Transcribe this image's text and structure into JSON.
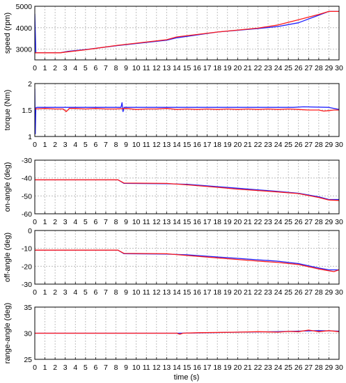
{
  "figure": {
    "xlabel": "time (s)"
  },
  "chart_data": [
    {
      "type": "line",
      "ylabel": "speed (rpm)",
      "xlim": [
        0,
        30
      ],
      "ylim": [
        2500,
        5000
      ],
      "xticks": [
        0,
        1,
        2,
        3,
        4,
        5,
        6,
        7,
        8,
        9,
        10,
        11,
        12,
        13,
        14,
        15,
        16,
        17,
        18,
        19,
        20,
        21,
        22,
        23,
        24,
        25,
        26,
        27,
        28,
        29,
        30
      ],
      "yticks": [
        3000,
        4000,
        5000
      ],
      "grid": true,
      "series": [
        {
          "color": "#1f1fff",
          "x": [
            0,
            0.1,
            2.5,
            3.3,
            5,
            8,
            13,
            14,
            18,
            22,
            24,
            26,
            29,
            29.3,
            30
          ],
          "y": [
            4650,
            2830,
            2830,
            2900,
            2980,
            3160,
            3420,
            3530,
            3800,
            3960,
            4060,
            4230,
            4760,
            4760,
            4760
          ]
        },
        {
          "color": "#ff1a1a",
          "x": [
            0,
            0.1,
            2.5,
            3.3,
            5,
            8,
            13,
            14,
            18,
            22,
            24,
            26,
            28,
            29,
            30
          ],
          "y": [
            2830,
            2830,
            2830,
            2880,
            2970,
            3170,
            3440,
            3570,
            3800,
            3980,
            4130,
            4370,
            4620,
            4760,
            4760
          ]
        }
      ]
    },
    {
      "type": "line",
      "ylabel": "torque (Nm)",
      "xlim": [
        0,
        30
      ],
      "ylim": [
        1,
        2
      ],
      "xticks": [
        0,
        1,
        2,
        3,
        4,
        5,
        6,
        7,
        8,
        9,
        10,
        11,
        12,
        13,
        14,
        15,
        16,
        17,
        18,
        19,
        20,
        21,
        22,
        23,
        24,
        25,
        26,
        27,
        28,
        29,
        30
      ],
      "yticks": [
        1,
        1.5,
        2
      ],
      "ytick_labels": [
        "1",
        "1.5",
        "2"
      ],
      "grid": true,
      "series": [
        {
          "color": "#1f1fff",
          "x": [
            0,
            0.05,
            0.1,
            0.2,
            8.5,
            8.6,
            8.7,
            8.8,
            20,
            25.5,
            26.5,
            29,
            30
          ],
          "y": [
            1.9,
            1.05,
            1.54,
            1.55,
            1.55,
            1.64,
            1.47,
            1.55,
            1.55,
            1.55,
            1.56,
            1.55,
            1.51
          ]
        },
        {
          "color": "#ff1a1a",
          "x": [
            0,
            1,
            2,
            2.8,
            3.1,
            3.4,
            4,
            5,
            6,
            7,
            8,
            9,
            10,
            11,
            12,
            13,
            14,
            15,
            16,
            17,
            18,
            19,
            20,
            21,
            22,
            23,
            24,
            25,
            26,
            27,
            28,
            28.5,
            29,
            29.5,
            30
          ],
          "y": [
            1.52,
            1.53,
            1.52,
            1.52,
            1.47,
            1.53,
            1.53,
            1.52,
            1.53,
            1.52,
            1.52,
            1.53,
            1.51,
            1.52,
            1.52,
            1.53,
            1.51,
            1.52,
            1.51,
            1.52,
            1.51,
            1.52,
            1.51,
            1.52,
            1.51,
            1.52,
            1.51,
            1.52,
            1.51,
            1.5,
            1.5,
            1.48,
            1.49,
            1.5,
            1.5
          ]
        }
      ]
    },
    {
      "type": "line",
      "ylabel": "on-angle (deg)",
      "xlim": [
        0,
        30
      ],
      "ylim": [
        -60,
        -30
      ],
      "xticks": [
        0,
        1,
        2,
        3,
        4,
        5,
        6,
        7,
        8,
        9,
        10,
        11,
        12,
        13,
        14,
        15,
        16,
        17,
        18,
        19,
        20,
        21,
        22,
        23,
        24,
        25,
        26,
        27,
        28,
        29,
        30
      ],
      "yticks": [
        -60,
        -50,
        -40,
        -30
      ],
      "grid": true,
      "series": [
        {
          "color": "#1f1fff",
          "x": [
            0,
            8,
            8.2,
            8.8,
            13,
            15,
            18,
            20,
            22,
            24,
            26,
            28,
            29,
            30
          ],
          "y": [
            -41,
            -41,
            -41,
            -43,
            -43.2,
            -43.5,
            -44.8,
            -45.7,
            -46.6,
            -47.5,
            -48.5,
            -50.5,
            -52,
            -52
          ]
        },
        {
          "color": "#ff1a1a",
          "x": [
            0,
            8,
            8.2,
            8.8,
            13,
            15,
            18,
            20,
            22,
            24,
            26,
            28,
            29,
            30
          ],
          "y": [
            -41,
            -41,
            -41,
            -42.8,
            -43,
            -43.8,
            -45.2,
            -46.2,
            -47,
            -47.8,
            -48.7,
            -50.9,
            -52.3,
            -52.5
          ]
        }
      ]
    },
    {
      "type": "line",
      "ylabel": "off-angle (deg)",
      "xlim": [
        0,
        30
      ],
      "ylim": [
        -30,
        0
      ],
      "xticks": [
        0,
        1,
        2,
        3,
        4,
        5,
        6,
        7,
        8,
        9,
        10,
        11,
        12,
        13,
        14,
        15,
        16,
        17,
        18,
        19,
        20,
        21,
        22,
        23,
        24,
        25,
        26,
        27,
        28,
        29,
        30
      ],
      "yticks": [
        -30,
        -20,
        -10,
        0
      ],
      "grid": true,
      "series": [
        {
          "color": "#1f1fff",
          "x": [
            0,
            8,
            8.2,
            8.8,
            13,
            15,
            18,
            20,
            22,
            24,
            26,
            28,
            29,
            30
          ],
          "y": [
            -11,
            -11,
            -11,
            -13,
            -13.2,
            -13.6,
            -14.8,
            -15.6,
            -16.4,
            -17.2,
            -18.5,
            -21,
            -22,
            -22
          ]
        },
        {
          "color": "#ff1a1a",
          "x": [
            0,
            8,
            8.2,
            8.8,
            13,
            15,
            18,
            20,
            22,
            24,
            26,
            28,
            29,
            29.5,
            30
          ],
          "y": [
            -11,
            -11,
            -11,
            -12.8,
            -13,
            -14,
            -15.3,
            -16.2,
            -17.1,
            -17.9,
            -19,
            -21.5,
            -22.5,
            -23,
            -22
          ]
        }
      ]
    },
    {
      "type": "line",
      "ylabel": "range-angle (deg)",
      "xlim": [
        0,
        30
      ],
      "ylim": [
        25,
        35
      ],
      "xticks": [
        0,
        1,
        2,
        3,
        4,
        5,
        6,
        7,
        8,
        9,
        10,
        11,
        12,
        13,
        14,
        15,
        16,
        17,
        18,
        19,
        20,
        21,
        22,
        23,
        24,
        25,
        26,
        27,
        28,
        29,
        30
      ],
      "yticks": [
        25,
        30,
        35
      ],
      "grid": true,
      "series": [
        {
          "color": "#1f1fff",
          "x": [
            0,
            8,
            14,
            16,
            20,
            24,
            26,
            28,
            30
          ],
          "y": [
            30,
            30,
            30,
            30.05,
            30.2,
            30.3,
            30.4,
            30.5,
            30.4
          ]
        },
        {
          "color": "#ff1a1a",
          "x": [
            0,
            8,
            14,
            14.3,
            14.6,
            16,
            20,
            22,
            24,
            25,
            26,
            27,
            28,
            29,
            30
          ],
          "y": [
            30,
            30,
            30,
            29.8,
            30,
            30.1,
            30.2,
            30.3,
            30.2,
            30.35,
            30.3,
            30.6,
            30.3,
            30.5,
            30.3
          ]
        }
      ]
    }
  ]
}
